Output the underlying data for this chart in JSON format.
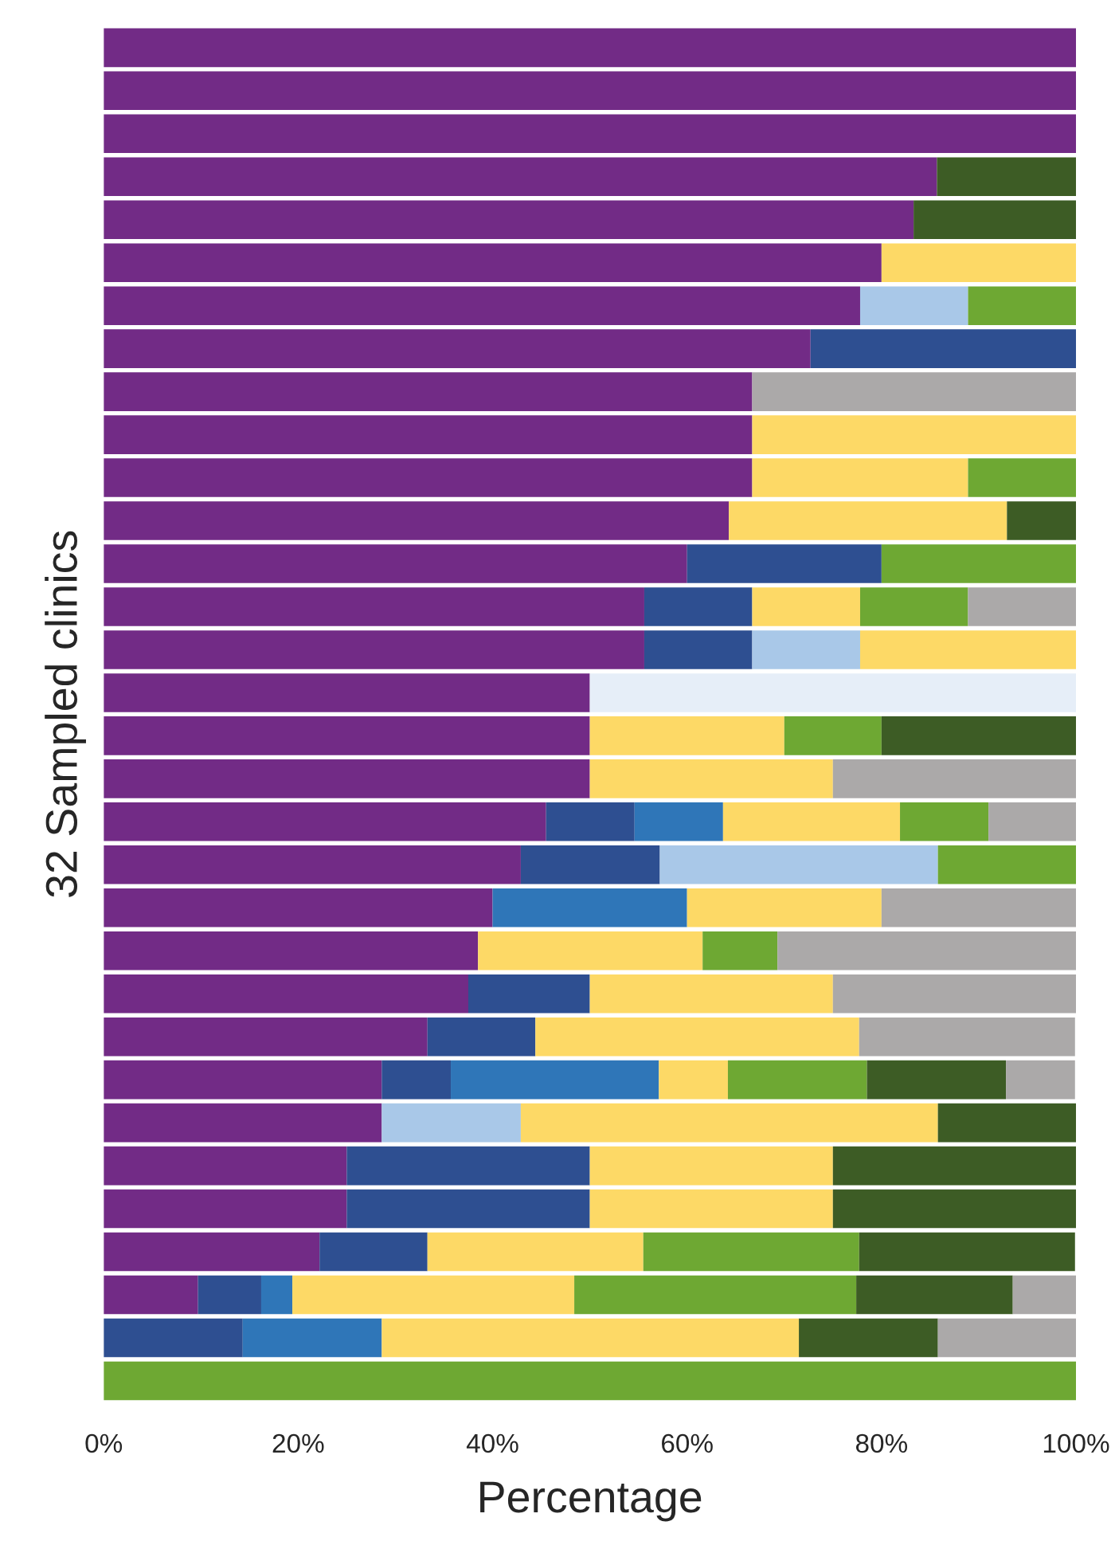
{
  "chart_data": {
    "type": "bar",
    "orientation": "horizontal",
    "stacked": true,
    "xlabel": "Percentage",
    "ylabel": "32 Sampled clinics",
    "categories": [
      null,
      null,
      null,
      null,
      null,
      null,
      null,
      null,
      null,
      null,
      null,
      null,
      null,
      null,
      null,
      null,
      null,
      null,
      null,
      null,
      null,
      null,
      null,
      null,
      null,
      null,
      null,
      null,
      null,
      null,
      null,
      null
    ],
    "xlim": [
      0,
      100
    ],
    "xticks": [
      {
        "value": 0,
        "label": "0%"
      },
      {
        "value": 20,
        "label": "20%"
      },
      {
        "value": 40,
        "label": "40%"
      },
      {
        "value": 60,
        "label": "60%"
      },
      {
        "value": 80,
        "label": "80%"
      },
      {
        "value": 100,
        "label": "100%"
      }
    ],
    "tick_labels": "x",
    "grid": false,
    "legend": false,
    "series": [
      {
        "color": "#722b86",
        "values": [
          100,
          100,
          100,
          85.7,
          83.3,
          80,
          77.8,
          72.7,
          66.7,
          66.7,
          66.7,
          64.3,
          60,
          55.6,
          55.6,
          50,
          50,
          50,
          45.5,
          42.9,
          40,
          38.5,
          37.5,
          33.3,
          28.6,
          28.6,
          25,
          25,
          22.2,
          9.7,
          null,
          null
        ]
      },
      {
        "color": "#2e4f91",
        "values": [
          null,
          null,
          null,
          null,
          null,
          null,
          null,
          27.3,
          null,
          null,
          null,
          null,
          20,
          11.1,
          11.1,
          null,
          null,
          null,
          9.1,
          14.3,
          null,
          null,
          12.5,
          11.1,
          7.1,
          null,
          25,
          25,
          11.1,
          6.5,
          14.3,
          null
        ]
      },
      {
        "color": "#2f76b8",
        "values": [
          null,
          null,
          null,
          null,
          null,
          null,
          null,
          null,
          null,
          null,
          null,
          null,
          null,
          null,
          null,
          null,
          null,
          null,
          9.1,
          null,
          20,
          null,
          null,
          null,
          21.4,
          null,
          null,
          null,
          null,
          3.2,
          14.3,
          null
        ]
      },
      {
        "color": "#a9c8e8",
        "values": [
          null,
          null,
          null,
          null,
          null,
          null,
          11.1,
          null,
          null,
          null,
          null,
          null,
          null,
          null,
          11.1,
          null,
          null,
          null,
          null,
          28.6,
          null,
          null,
          null,
          null,
          null,
          14.3,
          null,
          null,
          null,
          null,
          null,
          null
        ]
      },
      {
        "color": "#fdd966",
        "values": [
          null,
          null,
          null,
          null,
          null,
          20,
          null,
          null,
          null,
          33.3,
          22.2,
          28.6,
          null,
          11.1,
          22.2,
          null,
          20,
          25,
          18.2,
          null,
          20,
          23.1,
          25,
          33.3,
          7.1,
          42.9,
          25,
          25,
          22.2,
          29,
          42.9,
          null
        ]
      },
      {
        "color": "#6ea833",
        "values": [
          null,
          null,
          null,
          null,
          null,
          null,
          11.1,
          null,
          null,
          null,
          11.1,
          null,
          20,
          11.1,
          null,
          null,
          10,
          null,
          9.1,
          14.3,
          null,
          7.7,
          null,
          null,
          14.3,
          null,
          null,
          null,
          22.2,
          29,
          null,
          100
        ]
      },
      {
        "color": "#3d5c25",
        "values": [
          null,
          null,
          null,
          14.3,
          16.7,
          null,
          null,
          null,
          null,
          null,
          null,
          7.1,
          null,
          null,
          null,
          null,
          20,
          null,
          null,
          null,
          null,
          null,
          null,
          null,
          14.3,
          14.3,
          25,
          25,
          22.2,
          16.1,
          14.3,
          null
        ]
      },
      {
        "color": "#aba9a9",
        "values": [
          null,
          null,
          null,
          null,
          null,
          null,
          null,
          null,
          33.3,
          null,
          null,
          null,
          null,
          11.1,
          null,
          null,
          null,
          25,
          9.1,
          null,
          20,
          30.8,
          25,
          22.2,
          7.1,
          null,
          null,
          null,
          null,
          6.5,
          14.3,
          null
        ]
      },
      {
        "color": "#e6eef8",
        "values": [
          null,
          null,
          null,
          null,
          null,
          null,
          null,
          null,
          null,
          null,
          null,
          null,
          null,
          null,
          null,
          50,
          null,
          null,
          null,
          null,
          null,
          null,
          null,
          null,
          null,
          null,
          null,
          null,
          null,
          null,
          null,
          null
        ]
      }
    ]
  }
}
